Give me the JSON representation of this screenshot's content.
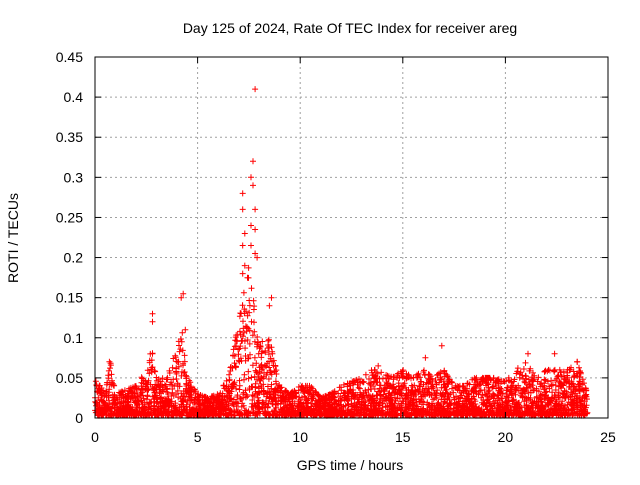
{
  "chart_data": {
    "type": "scatter",
    "title": "Day 125 of 2024, Rate Of TEC Index for receiver areg",
    "xlabel": "GPS time / hours",
    "ylabel": "ROTI / TECUs",
    "xlim": [
      0,
      25
    ],
    "ylim": [
      0,
      0.45
    ],
    "xticks": [
      "0",
      "5",
      "10",
      "15",
      "20",
      "25"
    ],
    "yticks": [
      "0",
      "0.05",
      "0.1",
      "0.15",
      "0.2",
      "0.25",
      "0.3",
      "0.35",
      "0.4",
      "0.45"
    ],
    "grid": true,
    "marker": "+",
    "color": "#ff0000",
    "dense_envelope": [
      [
        0,
        0.05
      ],
      [
        0.5,
        0.03
      ],
      [
        0.75,
        0.07
      ],
      [
        1,
        0.03
      ],
      [
        1.5,
        0.035
      ],
      [
        2,
        0.04
      ],
      [
        2.5,
        0.06
      ],
      [
        2.75,
        0.09
      ],
      [
        3,
        0.05
      ],
      [
        3.5,
        0.05
      ],
      [
        4,
        0.09
      ],
      [
        4.3,
        0.11
      ],
      [
        4.5,
        0.05
      ],
      [
        5,
        0.03
      ],
      [
        5.5,
        0.025
      ],
      [
        6,
        0.03
      ],
      [
        6.5,
        0.05
      ],
      [
        7,
        0.12
      ],
      [
        7.5,
        0.19
      ],
      [
        8,
        0.1
      ],
      [
        8.5,
        0.1
      ],
      [
        9,
        0.04
      ],
      [
        9.5,
        0.03
      ],
      [
        10,
        0.04
      ],
      [
        10.5,
        0.04
      ],
      [
        11,
        0.025
      ],
      [
        11.5,
        0.03
      ],
      [
        12,
        0.04
      ],
      [
        12.5,
        0.045
      ],
      [
        13,
        0.05
      ],
      [
        13.5,
        0.06
      ],
      [
        14,
        0.06
      ],
      [
        14.5,
        0.05
      ],
      [
        15,
        0.06
      ],
      [
        15.5,
        0.05
      ],
      [
        16,
        0.06
      ],
      [
        16.5,
        0.05
      ],
      [
        17,
        0.06
      ],
      [
        17.5,
        0.04
      ],
      [
        18,
        0.04
      ],
      [
        18.5,
        0.05
      ],
      [
        19,
        0.05
      ],
      [
        19.5,
        0.05
      ],
      [
        20,
        0.045
      ],
      [
        20.5,
        0.06
      ],
      [
        21,
        0.07
      ],
      [
        21.5,
        0.05
      ],
      [
        22,
        0.06
      ],
      [
        22.5,
        0.06
      ],
      [
        23,
        0.06
      ],
      [
        23.5,
        0.07
      ],
      [
        24,
        0.03
      ]
    ],
    "points": [
      [
        7.8,
        0.41
      ],
      [
        7.7,
        0.32
      ],
      [
        7.6,
        0.3
      ],
      [
        7.7,
        0.29
      ],
      [
        7.2,
        0.28
      ],
      [
        7.8,
        0.26
      ],
      [
        7.2,
        0.26
      ],
      [
        7.6,
        0.24
      ],
      [
        7.8,
        0.235
      ],
      [
        7.3,
        0.23
      ],
      [
        7.2,
        0.215
      ],
      [
        7.6,
        0.215
      ],
      [
        7.9,
        0.2
      ],
      [
        7.8,
        0.205
      ],
      [
        7.3,
        0.19
      ],
      [
        7.2,
        0.18
      ],
      [
        2.8,
        0.13
      ],
      [
        2.8,
        0.12
      ],
      [
        4.3,
        0.155
      ],
      [
        4.2,
        0.15
      ],
      [
        4.4,
        0.11
      ],
      [
        8.6,
        0.15
      ],
      [
        8.5,
        0.14
      ],
      [
        16.9,
        0.09
      ],
      [
        21.1,
        0.08
      ],
      [
        22.4,
        0.08
      ],
      [
        16.1,
        0.075
      ],
      [
        13.8,
        0.065
      ],
      [
        0.7,
        0.07
      ],
      [
        23.5,
        0.07
      ]
    ]
  }
}
